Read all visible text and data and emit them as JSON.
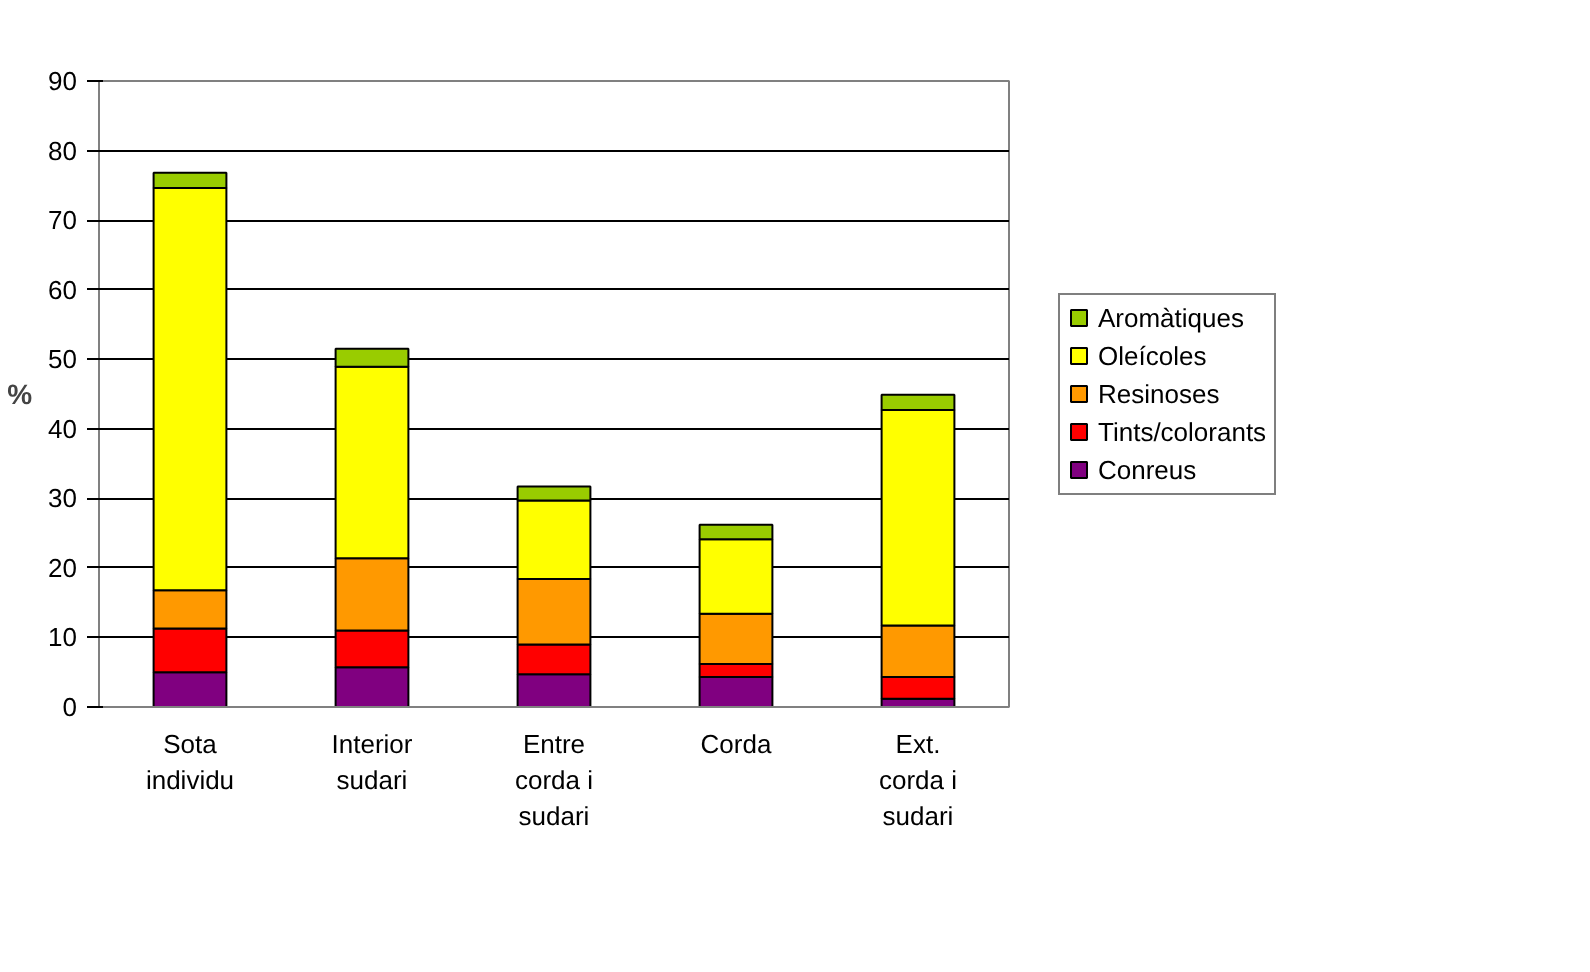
{
  "chart_data": {
    "type": "bar",
    "stacked": true,
    "ylabel": "%",
    "categories": [
      "Sota individu",
      "Interior sudari",
      "Entre corda i sudari",
      "Corda",
      "Ext. corda i sudari"
    ],
    "series": [
      {
        "name": "Conreus",
        "color": "#800080",
        "values": [
          5.0,
          5.7,
          4.7,
          4.3,
          1.2
        ]
      },
      {
        "name": "Tints/colorants",
        "color": "#ff0000",
        "values": [
          6.3,
          5.3,
          4.3,
          1.9,
          3.1
        ]
      },
      {
        "name": "Resinoses",
        "color": "#ff9900",
        "values": [
          5.5,
          10.4,
          9.4,
          7.2,
          7.4
        ]
      },
      {
        "name": "Oleícoles",
        "color": "#ffff00",
        "values": [
          57.8,
          27.5,
          11.3,
          10.7,
          31.0
        ]
      },
      {
        "name": "Aromàtiques",
        "color": "#99cc00",
        "values": [
          2.2,
          2.6,
          2.0,
          2.1,
          2.2
        ]
      }
    ],
    "ylim": [
      0,
      90
    ],
    "yticks": [
      0,
      10,
      20,
      30,
      40,
      50,
      60,
      70,
      80,
      90
    ],
    "grid": "y",
    "legend": "right"
  }
}
